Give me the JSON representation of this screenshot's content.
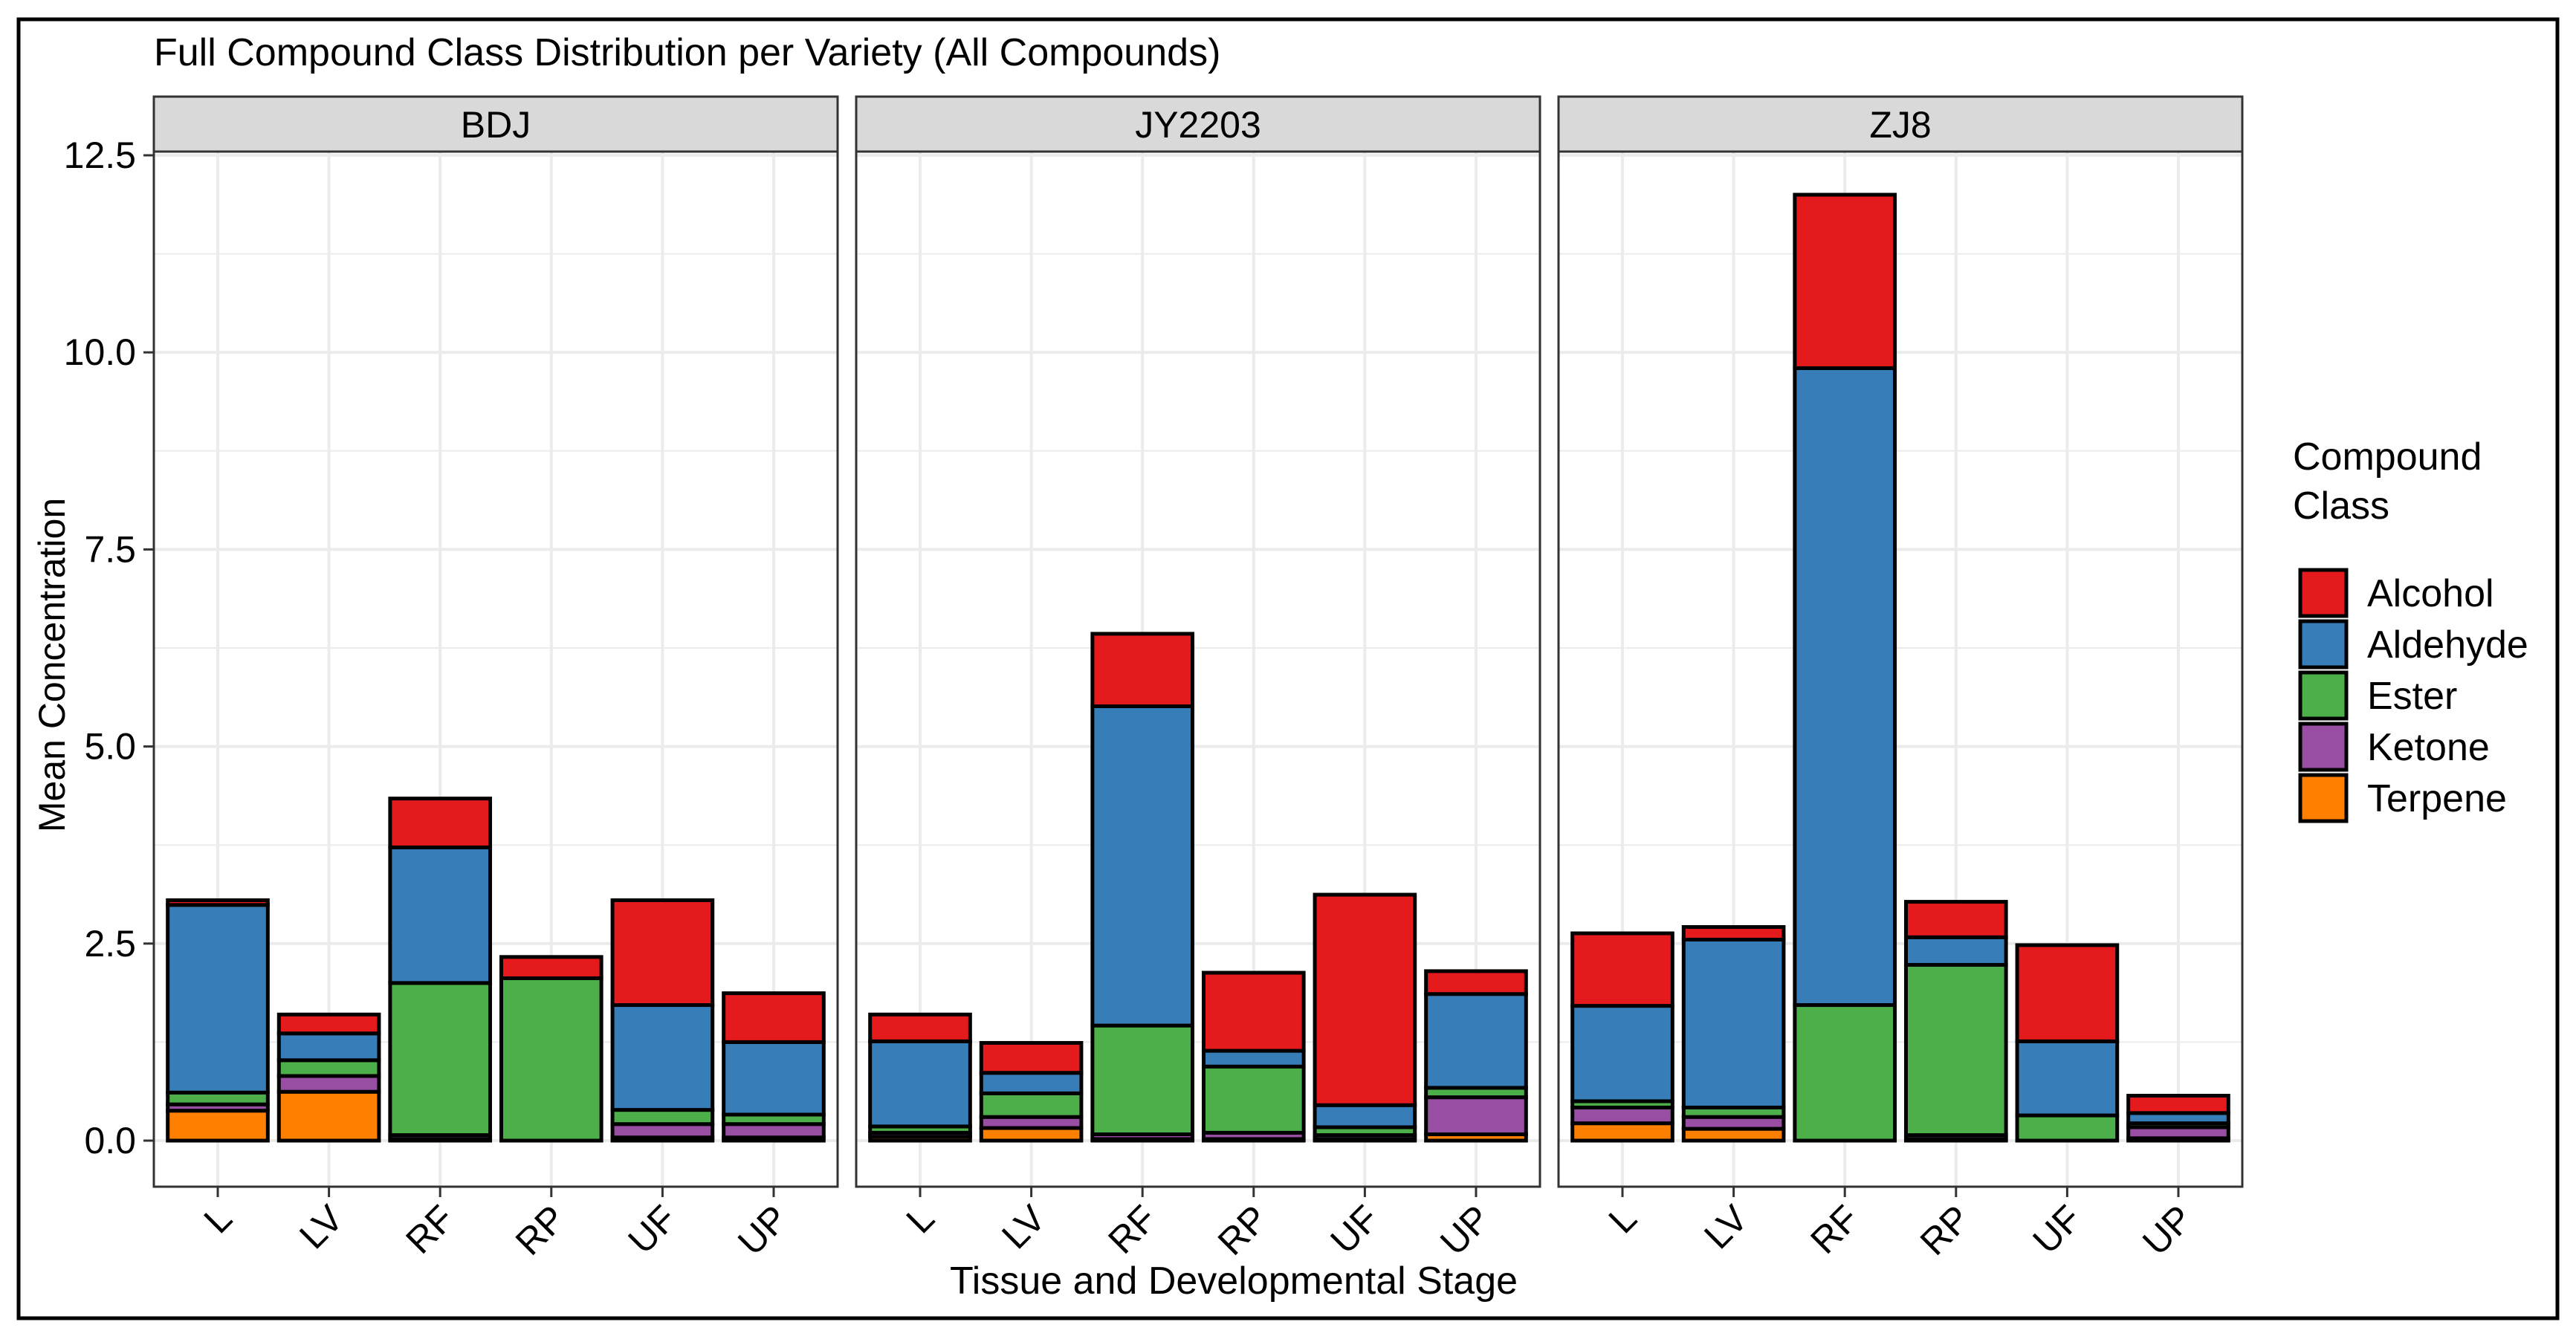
{
  "chart_data": {
    "type": "bar",
    "stacked": true,
    "title": "Full Compound Class Distribution per Variety (All Compounds)",
    "xlabel": "Tissue and Developmental Stage",
    "ylabel": "Mean Concentration",
    "ylim": [
      0,
      12.5
    ],
    "yticks": [
      "0.0",
      "2.5",
      "5.0",
      "7.5",
      "10.0",
      "12.5"
    ],
    "grid": true,
    "legend": {
      "title": "Compound\nClass",
      "title_lines": [
        "Compound",
        "Class"
      ],
      "placement": "right",
      "entries": [
        "Alcohol",
        "Aldehyde",
        "Ester",
        "Ketone",
        "Terpene"
      ]
    },
    "colors": {
      "Alcohol": "#E41A1C",
      "Aldehyde": "#377EB8",
      "Ester": "#4DAF4A",
      "Ketone": "#984EA3",
      "Terpene": "#FF7F00"
    },
    "stack_order": [
      "Terpene",
      "Ketone",
      "Ester",
      "Aldehyde",
      "Alcohol"
    ],
    "categories": [
      "L",
      "LV",
      "RF",
      "RP",
      "UF",
      "UP"
    ],
    "panels": [
      {
        "name": "BDJ",
        "values": {
          "L": {
            "Terpene": 0.38,
            "Ketone": 0.08,
            "Ester": 0.15,
            "Aldehyde": 2.38,
            "Alcohol": 0.06
          },
          "LV": {
            "Terpene": 0.62,
            "Ketone": 0.2,
            "Ester": 0.2,
            "Aldehyde": 0.34,
            "Alcohol": 0.24
          },
          "RF": {
            "Terpene": 0.02,
            "Ketone": 0.05,
            "Ester": 1.93,
            "Aldehyde": 1.72,
            "Alcohol": 0.62
          },
          "RP": {
            "Terpene": 0.0,
            "Ketone": 0.0,
            "Ester": 2.06,
            "Aldehyde": 0.0,
            "Alcohol": 0.27
          },
          "UF": {
            "Terpene": 0.04,
            "Ketone": 0.17,
            "Ester": 0.18,
            "Aldehyde": 1.33,
            "Alcohol": 1.33
          },
          "UP": {
            "Terpene": 0.04,
            "Ketone": 0.17,
            "Ester": 0.12,
            "Aldehyde": 0.92,
            "Alcohol": 0.62
          }
        }
      },
      {
        "name": "JY2203",
        "values": {
          "L": {
            "Terpene": 0.05,
            "Ketone": 0.05,
            "Ester": 0.08,
            "Aldehyde": 1.08,
            "Alcohol": 0.34
          },
          "LV": {
            "Terpene": 0.16,
            "Ketone": 0.14,
            "Ester": 0.3,
            "Aldehyde": 0.26,
            "Alcohol": 0.38
          },
          "RF": {
            "Terpene": 0.02,
            "Ketone": 0.06,
            "Ester": 1.38,
            "Aldehyde": 4.05,
            "Alcohol": 0.92
          },
          "RP": {
            "Terpene": 0.02,
            "Ketone": 0.08,
            "Ester": 0.84,
            "Aldehyde": 0.2,
            "Alcohol": 0.99
          },
          "UF": {
            "Terpene": 0.02,
            "Ketone": 0.05,
            "Ester": 0.1,
            "Aldehyde": 0.28,
            "Alcohol": 2.67
          },
          "UP": {
            "Terpene": 0.08,
            "Ketone": 0.47,
            "Ester": 0.12,
            "Aldehyde": 1.19,
            "Alcohol": 0.29
          }
        }
      },
      {
        "name": "ZJ8",
        "values": {
          "L": {
            "Terpene": 0.22,
            "Ketone": 0.2,
            "Ester": 0.08,
            "Aldehyde": 1.21,
            "Alcohol": 0.92
          },
          "LV": {
            "Terpene": 0.15,
            "Ketone": 0.15,
            "Ester": 0.12,
            "Aldehyde": 2.13,
            "Alcohol": 0.16
          },
          "RF": {
            "Terpene": 0.0,
            "Ketone": 0.0,
            "Ester": 1.72,
            "Aldehyde": 8.08,
            "Alcohol": 2.2
          },
          "RP": {
            "Terpene": 0.02,
            "Ketone": 0.05,
            "Ester": 2.16,
            "Aldehyde": 0.35,
            "Alcohol": 0.45
          },
          "UF": {
            "Terpene": 0.0,
            "Ketone": 0.0,
            "Ester": 0.32,
            "Aldehyde": 0.94,
            "Alcohol": 1.22
          },
          "UP": {
            "Terpene": 0.03,
            "Ketone": 0.14,
            "Ester": 0.05,
            "Aldehyde": 0.13,
            "Alcohol": 0.22
          }
        }
      }
    ]
  }
}
